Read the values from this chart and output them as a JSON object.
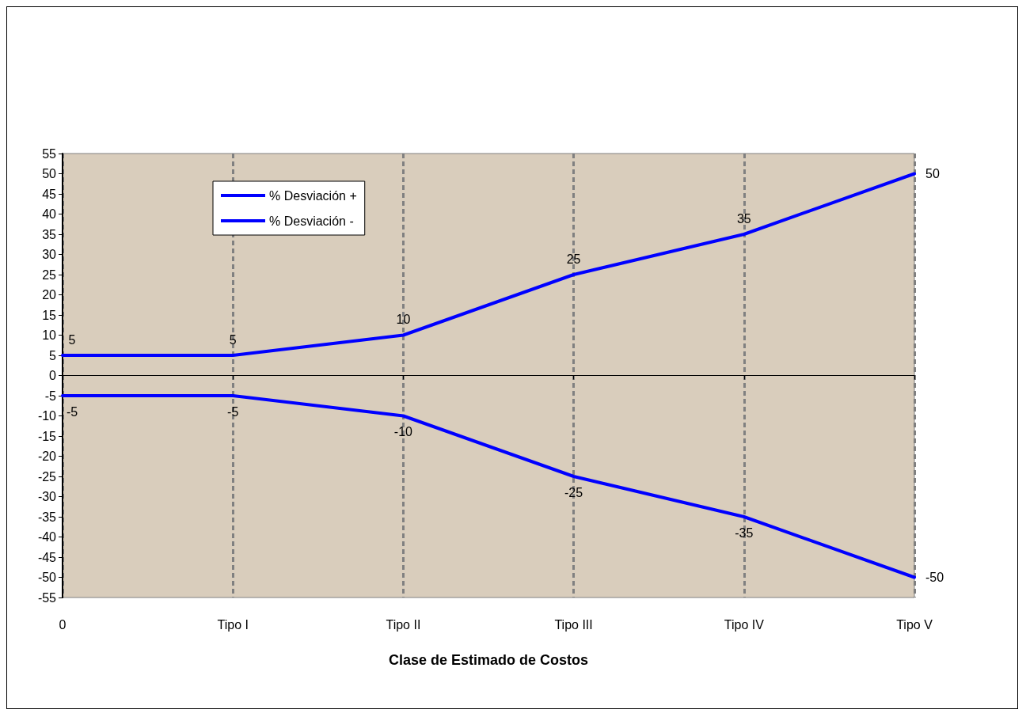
{
  "chart_data": {
    "type": "line",
    "xlabel": "Clase de Estimado de Costos",
    "categories": [
      "0",
      "Tipo I",
      "Tipo II",
      "Tipo III",
      "Tipo IV",
      "Tipo V"
    ],
    "series": [
      {
        "name": "% Desviación +",
        "color": "#0000ff",
        "values": [
          5,
          5,
          10,
          25,
          35,
          50
        ]
      },
      {
        "name": "% Desviación -",
        "color": "#0000ff",
        "values": [
          -5,
          -5,
          -10,
          -25,
          -35,
          -50
        ]
      }
    ],
    "ylim": [
      -55,
      55
    ],
    "yticks": [
      -55,
      -50,
      -45,
      -40,
      -35,
      -30,
      -25,
      -20,
      -15,
      -10,
      -5,
      0,
      5,
      10,
      15,
      20,
      25,
      30,
      35,
      40,
      45,
      50,
      55
    ],
    "grid": "x",
    "legend": "top left",
    "data_labels": true,
    "marker": "none",
    "line_style": "solid"
  }
}
